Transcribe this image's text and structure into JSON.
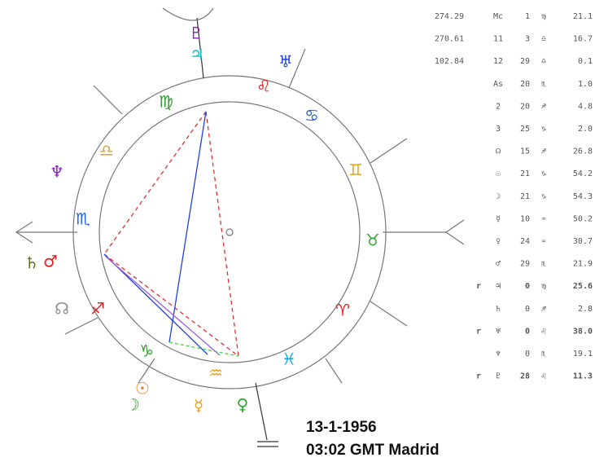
{
  "table": {
    "rows": [
      {
        "value": "274.29",
        "label": "Mc",
        "deg": "1",
        "sign": "♍",
        "min": "21.1"
      },
      {
        "value": "270.61",
        "label": "11",
        "deg": "3",
        "sign": "♎",
        "min": "16.7"
      },
      {
        "value": "102.84",
        "label": "12",
        "deg": "29",
        "sign": "♎",
        "min": "0.1"
      },
      {
        "label": "As",
        "deg": "20",
        "sign": "♏",
        "min": "1.0"
      },
      {
        "label": "2",
        "deg": "20",
        "sign": "♐",
        "min": "4.8"
      },
      {
        "label": "3",
        "deg": "25",
        "sign": "♑",
        "min": "2.0"
      },
      {
        "label": "☊",
        "deg": "15",
        "sign": "♐",
        "min": "26.8"
      },
      {
        "label": "☉",
        "deg": "21",
        "sign": "♑",
        "min": "54.2"
      },
      {
        "label": "☽",
        "deg": "21",
        "sign": "♑",
        "min": "54.3"
      },
      {
        "label": "☿",
        "deg": "10",
        "sign": "♒",
        "min": "50.2"
      },
      {
        "label": "♀",
        "deg": "24",
        "sign": "♒",
        "min": "30.7"
      },
      {
        "label": "♂",
        "deg": "29",
        "sign": "♏",
        "min": "21.9"
      },
      {
        "retro": "r",
        "label": "♃",
        "deg": "0",
        "sign": "♍",
        "min": "25.6",
        "color": "#2a3cd6"
      },
      {
        "label": "♄",
        "deg": "0",
        "sign": "♐",
        "min": "2.8"
      },
      {
        "retro": "r",
        "label": "♅",
        "deg": "0",
        "sign": "♌",
        "min": "38.0",
        "color": "#2a3cd6"
      },
      {
        "label": "♆",
        "deg": "0",
        "sign": "♏",
        "min": "19.1"
      },
      {
        "retro": "r",
        "label": "♇",
        "deg": "28",
        "sign": "♌",
        "min": "11.3",
        "color": "#2a3cd6"
      }
    ]
  },
  "caption": {
    "date": "13-1-1956",
    "time": "03:02 GMT Madrid"
  },
  "wheel": {
    "signs": [
      {
        "glyph": "♍",
        "color": "#2e9a2e"
      },
      {
        "glyph": "♌",
        "color": "#e02020"
      },
      {
        "glyph": "♋",
        "color": "#2060e0"
      },
      {
        "glyph": "♊",
        "color": "#e8a020"
      },
      {
        "glyph": "♉",
        "color": "#2ea82e"
      },
      {
        "glyph": "♈",
        "color": "#e02020"
      },
      {
        "glyph": "♓",
        "color": "#10a8e0"
      },
      {
        "glyph": "♒",
        "color": "#e8a020"
      },
      {
        "glyph": "♑",
        "color": "#2e9a2e"
      },
      {
        "glyph": "♐",
        "color": "#e02020"
      },
      {
        "glyph": "♏",
        "color": "#2060e0"
      },
      {
        "glyph": "♎",
        "color": "#e8a020"
      }
    ],
    "planets": [
      {
        "glyph": "♇",
        "color": "#8a20c0"
      },
      {
        "glyph": "♃",
        "color": "#10c0d0"
      },
      {
        "glyph": "♅",
        "color": "#2040e0"
      },
      {
        "glyph": "♆",
        "color": "#8a20c0"
      },
      {
        "glyph": "♄",
        "color": "#607020"
      },
      {
        "glyph": "♂",
        "color": "#e02020"
      },
      {
        "glyph": "☊",
        "color": "#909090"
      },
      {
        "glyph": "☉",
        "color": "#e88020"
      },
      {
        "glyph": "☽",
        "color": "#2e9a2e"
      },
      {
        "glyph": "☿",
        "color": "#e8a020"
      },
      {
        "glyph": "♀",
        "color": "#2ea82e"
      }
    ]
  }
}
